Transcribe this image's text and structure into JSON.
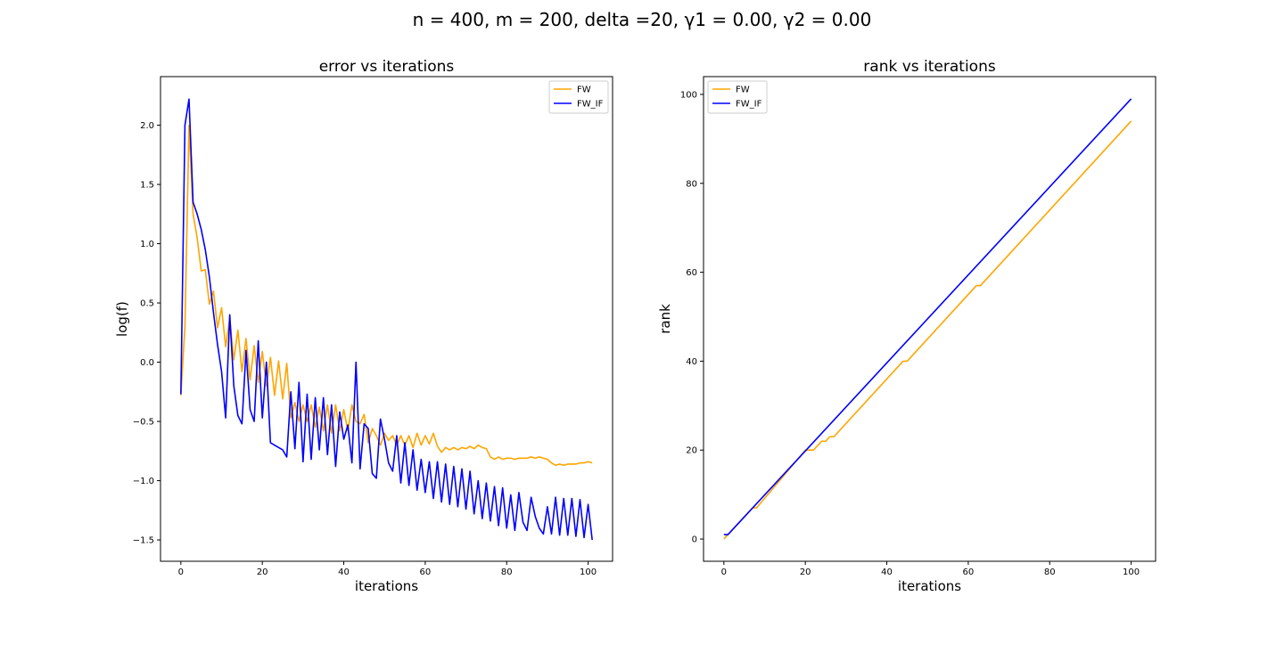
{
  "figure": {
    "suptitle": "n = 400, m = 200, delta =20, γ1 = 0.00, γ2 = 0.00"
  },
  "colors": {
    "FW": "#ffa500",
    "FW_IF": "#0000ff"
  },
  "chart_data": [
    {
      "type": "line",
      "title": "error vs iterations",
      "xlabel": "iterations",
      "ylabel": "log(f)",
      "xlim": [
        -5,
        106
      ],
      "ylim": [
        -1.68,
        2.41
      ],
      "xticks": [
        0,
        20,
        40,
        60,
        80,
        100
      ],
      "yticks": [
        -1.5,
        -1.0,
        -0.5,
        0.0,
        0.5,
        1.0,
        1.5,
        2.0
      ],
      "ytick_labels": [
        "−1.5",
        "−1.0",
        "−0.5",
        "0.0",
        "0.5",
        "1.0",
        "1.5",
        "2.0"
      ],
      "legend_position": "upper right",
      "grid": false,
      "series": [
        {
          "name": "FW",
          "color": "#ffa500",
          "x": [
            0,
            1,
            2,
            3,
            4,
            5,
            6,
            7,
            8,
            9,
            10,
            11,
            12,
            13,
            14,
            15,
            16,
            17,
            18,
            19,
            20,
            21,
            22,
            23,
            24,
            25,
            26,
            27,
            28,
            29,
            30,
            31,
            32,
            33,
            34,
            35,
            36,
            37,
            38,
            39,
            40,
            41,
            42,
            43,
            44,
            45,
            46,
            47,
            48,
            49,
            50,
            51,
            52,
            53,
            54,
            55,
            56,
            57,
            58,
            59,
            60,
            61,
            62,
            63,
            64,
            65,
            66,
            67,
            68,
            69,
            70,
            71,
            72,
            73,
            74,
            75,
            76,
            77,
            78,
            79,
            80,
            81,
            82,
            83,
            84,
            85,
            86,
            87,
            88,
            89,
            90,
            91,
            92,
            93,
            94,
            95,
            96,
            97,
            98,
            99,
            100,
            101
          ],
          "y": [
            -0.28,
            0.3,
            2.0,
            1.25,
            1.05,
            0.77,
            0.78,
            0.49,
            0.6,
            0.29,
            0.46,
            0.13,
            0.37,
            0.02,
            0.27,
            -0.08,
            0.2,
            -0.15,
            0.14,
            -0.17,
            0.09,
            -0.2,
            0.04,
            -0.28,
            0.01,
            -0.31,
            -0.01,
            -0.47,
            -0.34,
            -0.5,
            -0.36,
            -0.5,
            -0.36,
            -0.55,
            -0.38,
            -0.58,
            -0.36,
            -0.6,
            -0.36,
            -0.58,
            -0.4,
            -0.58,
            -0.36,
            -0.5,
            -0.52,
            -0.44,
            -0.68,
            -0.56,
            -0.62,
            -0.7,
            -0.6,
            -0.66,
            -0.62,
            -0.7,
            -0.62,
            -0.7,
            -0.62,
            -0.72,
            -0.6,
            -0.7,
            -0.62,
            -0.69,
            -0.6,
            -0.71,
            -0.76,
            -0.72,
            -0.74,
            -0.72,
            -0.74,
            -0.72,
            -0.73,
            -0.71,
            -0.73,
            -0.7,
            -0.72,
            -0.73,
            -0.8,
            -0.82,
            -0.8,
            -0.82,
            -0.81,
            -0.81,
            -0.82,
            -0.81,
            -0.81,
            -0.81,
            -0.8,
            -0.81,
            -0.8,
            -0.81,
            -0.82,
            -0.85,
            -0.87,
            -0.86,
            -0.87,
            -0.86,
            -0.86,
            -0.86,
            -0.85,
            -0.85,
            -0.84,
            -0.85
          ]
        },
        {
          "name": "FW_IF",
          "color": "#0000ff",
          "x": [
            0,
            1,
            2,
            3,
            4,
            5,
            6,
            7,
            8,
            9,
            10,
            11,
            12,
            13,
            14,
            15,
            16,
            17,
            18,
            19,
            20,
            21,
            22,
            23,
            24,
            25,
            26,
            27,
            28,
            29,
            30,
            31,
            32,
            33,
            34,
            35,
            36,
            37,
            38,
            39,
            40,
            41,
            42,
            43,
            44,
            45,
            46,
            47,
            48,
            49,
            50,
            51,
            52,
            53,
            54,
            55,
            56,
            57,
            58,
            59,
            60,
            61,
            62,
            63,
            64,
            65,
            66,
            67,
            68,
            69,
            70,
            71,
            72,
            73,
            74,
            75,
            76,
            77,
            78,
            79,
            80,
            81,
            82,
            83,
            84,
            85,
            86,
            87,
            88,
            89,
            90,
            91,
            92,
            93,
            94,
            95,
            96,
            97,
            98,
            99,
            100,
            101
          ],
          "y": [
            -0.27,
            2.0,
            2.22,
            1.35,
            1.25,
            1.12,
            0.95,
            0.72,
            0.42,
            0.15,
            -0.08,
            -0.47,
            0.4,
            -0.2,
            -0.45,
            -0.52,
            0.1,
            -0.4,
            -0.5,
            0.18,
            -0.47,
            0.0,
            -0.68,
            -0.7,
            -0.72,
            -0.74,
            -0.8,
            -0.25,
            -0.73,
            -0.17,
            -0.84,
            -0.27,
            -0.82,
            -0.3,
            -0.74,
            -0.3,
            -0.78,
            -0.36,
            -0.88,
            -0.42,
            -0.65,
            -0.53,
            -0.85,
            0.0,
            -0.9,
            -0.52,
            -0.56,
            -0.94,
            -0.98,
            -0.48,
            -0.65,
            -0.85,
            -0.92,
            -0.62,
            -1.02,
            -0.68,
            -1.04,
            -0.74,
            -1.08,
            -0.82,
            -1.1,
            -0.84,
            -1.15,
            -0.84,
            -1.18,
            -0.86,
            -1.2,
            -0.88,
            -1.22,
            -0.9,
            -1.24,
            -0.92,
            -1.28,
            -1.0,
            -1.32,
            -1.02,
            -1.34,
            -1.05,
            -1.38,
            -1.06,
            -1.4,
            -1.12,
            -1.42,
            -1.1,
            -1.35,
            -1.42,
            -1.14,
            -1.3,
            -1.4,
            -1.45,
            -1.22,
            -1.45,
            -1.14,
            -1.46,
            -1.15,
            -1.46,
            -1.15,
            -1.47,
            -1.16,
            -1.48,
            -1.2,
            -1.5
          ]
        }
      ]
    },
    {
      "type": "line",
      "title": "rank vs iterations",
      "xlabel": "iterations",
      "ylabel": "rank",
      "xlim": [
        -5,
        106
      ],
      "ylim": [
        -5,
        104
      ],
      "xticks": [
        0,
        20,
        40,
        60,
        80,
        100
      ],
      "yticks": [
        0,
        20,
        40,
        60,
        80,
        100
      ],
      "legend_position": "upper left",
      "grid": false,
      "series": [
        {
          "name": "FW",
          "color": "#ffa500",
          "x": [
            0,
            1,
            7,
            8,
            20,
            21,
            22,
            23,
            24,
            25,
            26,
            27,
            44,
            45,
            62,
            63,
            100
          ],
          "y": [
            0,
            1,
            7,
            7,
            20,
            20,
            20,
            21,
            22,
            22,
            23,
            23,
            40,
            40,
            57,
            57,
            94
          ]
        },
        {
          "name": "FW_IF",
          "color": "#0000ff",
          "x": [
            0,
            1,
            100
          ],
          "y": [
            1,
            1,
            99
          ]
        }
      ]
    }
  ]
}
